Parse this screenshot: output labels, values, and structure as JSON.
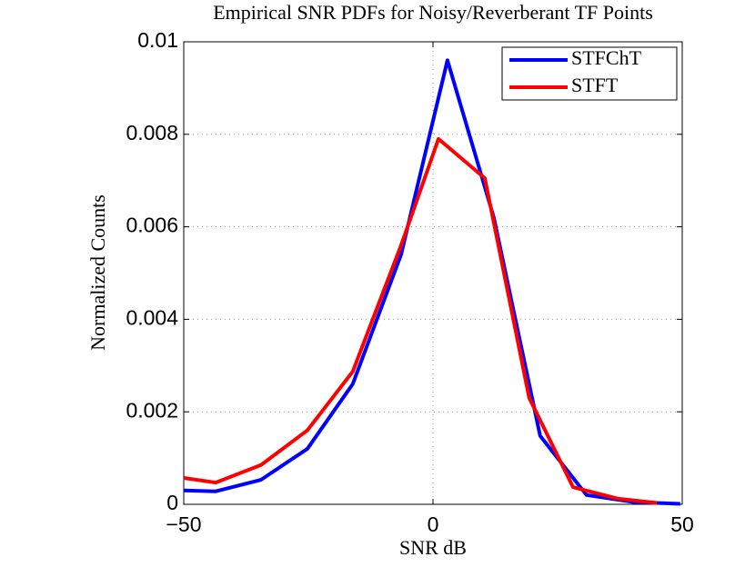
{
  "chart_data": {
    "type": "line",
    "title": "Empirical SNR PDFs for Noisy/Reverberant TF Points",
    "x_label": "SNR dB",
    "y_label": "Normalized Counts",
    "series": [
      {
        "name": "STFChT",
        "color": "#0000ff",
        "x": [
          -50,
          -43.6,
          -34.5,
          -25.2,
          -16.1,
          -6.4,
          2.9,
          12.2,
          21.5,
          30.8,
          40.1,
          49.6
        ],
        "values": [
          0.0003,
          0.00028,
          0.00053,
          0.0012,
          0.0026,
          0.0054,
          0.0096,
          0.0062,
          0.00148,
          0.0002,
          5e-05,
          1e-05
        ]
      },
      {
        "name": "STFT",
        "color": "#ff0000",
        "x": [
          -50,
          -43.6,
          -34.5,
          -25.2,
          -16.1,
          -6.4,
          1.1,
          10.4,
          19.3,
          28.1,
          37.2,
          44.9
        ],
        "values": [
          0.00057,
          0.00047,
          0.00085,
          0.0016,
          0.00287,
          0.0056,
          0.0079,
          0.00705,
          0.0023,
          0.00037,
          0.00012,
          3e-05
        ]
      }
    ],
    "xlim": [
      -50,
      50
    ],
    "xticks": [
      {
        "value": -50,
        "label": "−50"
      },
      0,
      50
    ],
    "ylim": [
      0,
      0.01
    ],
    "yticks": [
      0,
      0.002,
      0.004,
      0.006,
      0.008,
      0.01
    ],
    "grid": true,
    "legend": "top-right"
  }
}
